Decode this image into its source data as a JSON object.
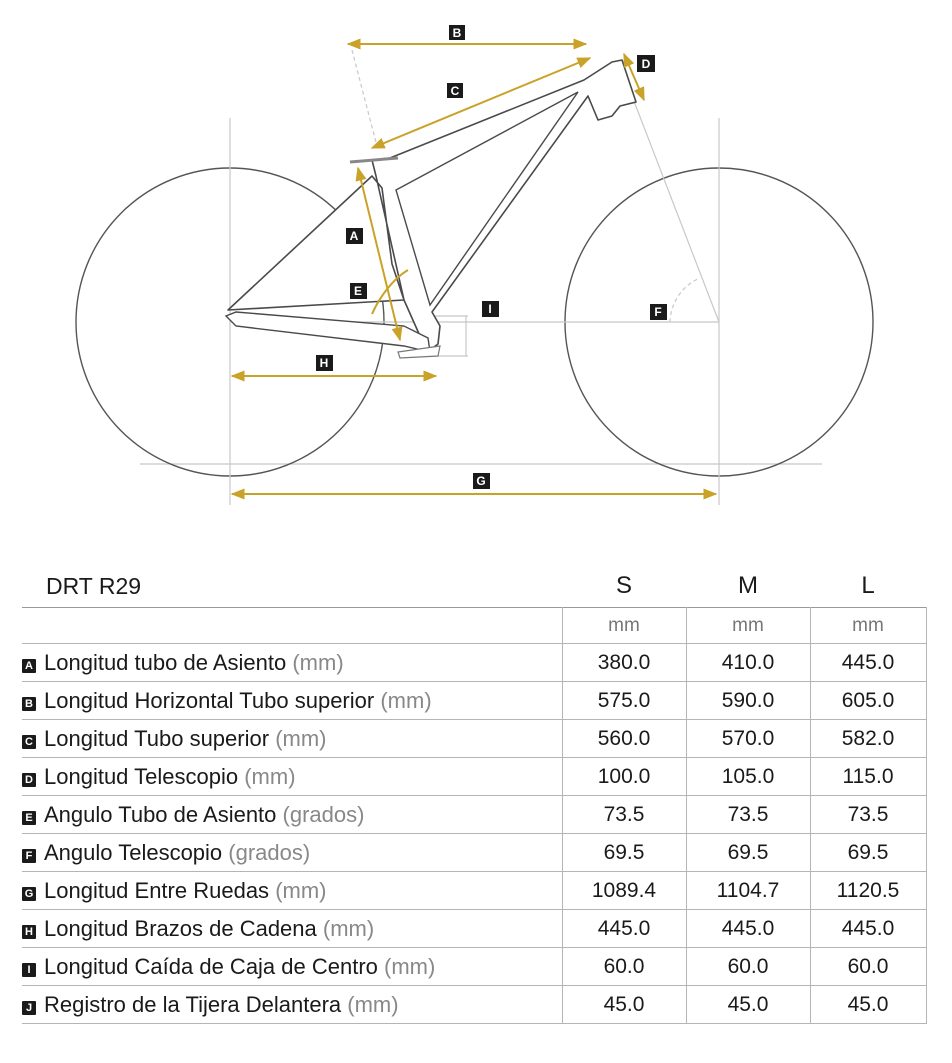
{
  "diagram": {
    "markers": {
      "A": "A",
      "B": "B",
      "C": "C",
      "D": "D",
      "E": "E",
      "F": "F",
      "G": "G",
      "H": "H",
      "I": "I"
    },
    "colors": {
      "dimension": "#c9a227",
      "frame": "#4a4a4a",
      "guide": "#c8c8c8"
    }
  },
  "table": {
    "model": "DRT R29",
    "sizes": [
      "S",
      "M",
      "L"
    ],
    "units_row": [
      "mm",
      "mm",
      "mm"
    ],
    "rows": [
      {
        "letter": "A",
        "label": "Longitud tubo de Asiento",
        "unit": "(mm)",
        "values": [
          "380.0",
          "410.0",
          "445.0"
        ]
      },
      {
        "letter": "B",
        "label": "Longitud Horizontal Tubo superior",
        "unit": "(mm)",
        "values": [
          "575.0",
          "590.0",
          "605.0"
        ]
      },
      {
        "letter": "C",
        "label": "Longitud Tubo superior",
        "unit": "(mm)",
        "values": [
          "560.0",
          "570.0",
          "582.0"
        ]
      },
      {
        "letter": "D",
        "label": "Longitud Telescopio",
        "unit": "(mm)",
        "values": [
          "100.0",
          "105.0",
          "115.0"
        ]
      },
      {
        "letter": "E",
        "label": "Angulo Tubo de Asiento",
        "unit": "(grados)",
        "values": [
          "73.5",
          "73.5",
          "73.5"
        ]
      },
      {
        "letter": "F",
        "label": "Angulo Telescopio",
        "unit": "(grados)",
        "values": [
          "69.5",
          "69.5",
          "69.5"
        ]
      },
      {
        "letter": "G",
        "label": "Longitud Entre Ruedas",
        "unit": "(mm)",
        "values": [
          "1089.4",
          "1104.7",
          "1120.5"
        ]
      },
      {
        "letter": "H",
        "label": "Longitud Brazos de Cadena",
        "unit": "(mm)",
        "values": [
          "445.0",
          "445.0",
          "445.0"
        ]
      },
      {
        "letter": "I",
        "label": "Longitud Caída de Caja de Centro",
        "unit": "(mm)",
        "values": [
          "60.0",
          "60.0",
          "60.0"
        ]
      },
      {
        "letter": "J",
        "label": "Registro de la Tijera Delantera",
        "unit": "(mm)",
        "values": [
          "45.0",
          "45.0",
          "45.0"
        ]
      }
    ]
  }
}
